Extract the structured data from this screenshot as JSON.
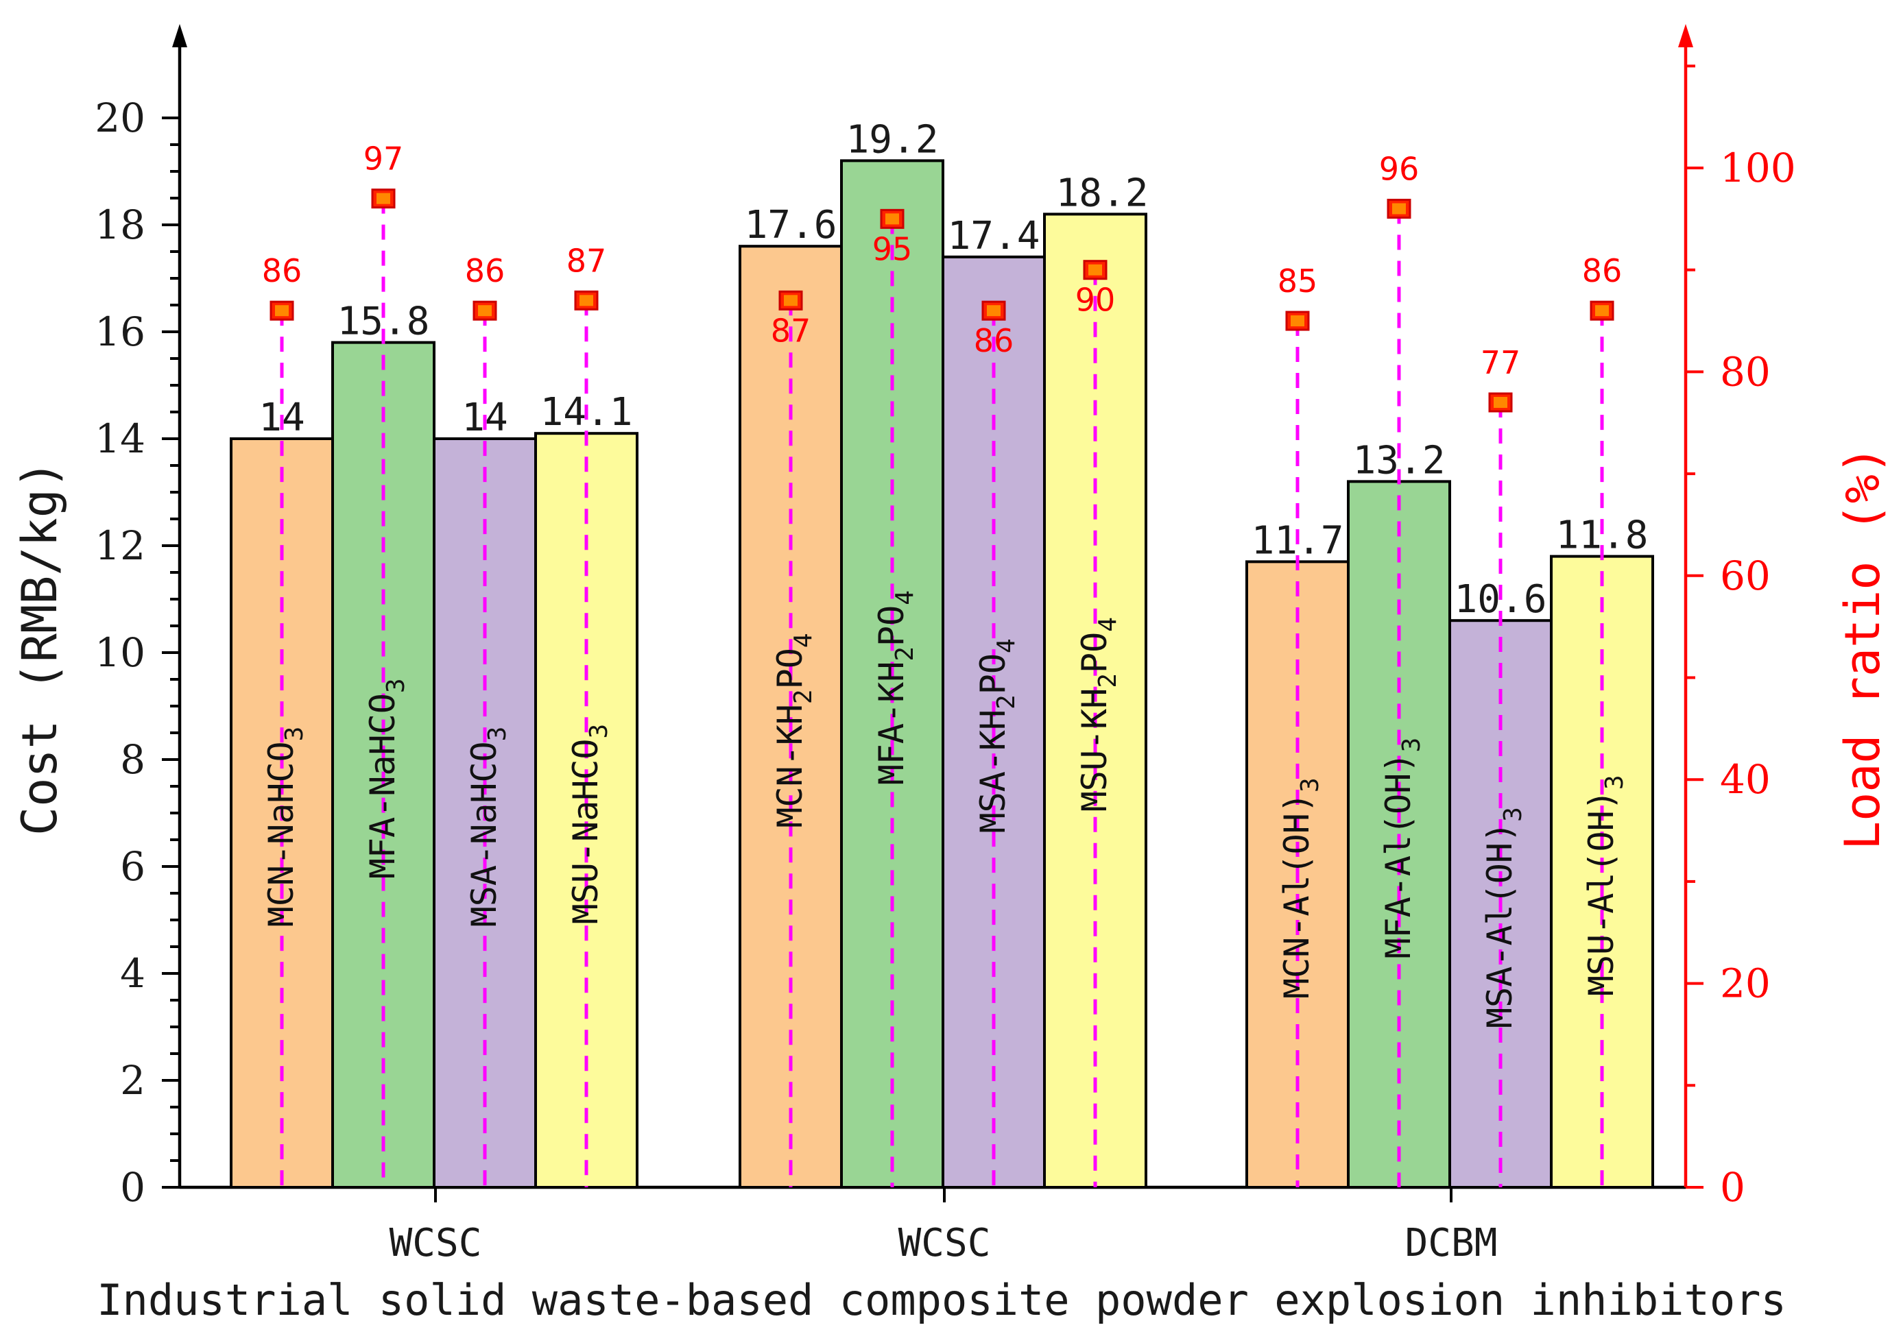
{
  "chart_data": {
    "type": "bar",
    "title": "",
    "xlabel": "Industrial solid waste-based composite powder explosion inhibitors",
    "ylabel": "Cost (RMB/kg)",
    "y2label": "Load ratio (%)",
    "ylim": [
      0,
      21
    ],
    "y2lim": [
      0,
      110
    ],
    "yticks": [
      "0",
      "2",
      "4",
      "6",
      "8",
      "10",
      "12",
      "14",
      "16",
      "18",
      "20"
    ],
    "y2ticks": [
      "0",
      "20",
      "40",
      "60",
      "80",
      "100"
    ],
    "groups": [
      "WCSC",
      "WCSC",
      "DCBM"
    ],
    "bars": [
      {
        "name": "MCN-NaHCO",
        "sub": "3",
        "group": 0,
        "cost": 14,
        "cost_label": "14",
        "load": 86,
        "load_label": "86",
        "color": "#fcc88e"
      },
      {
        "name": "MFA-NaHCO",
        "sub": "3",
        "group": 0,
        "cost": 15.8,
        "cost_label": "15.8",
        "load": 97,
        "load_label": "97",
        "color": "#99d594"
      },
      {
        "name": "MSA-NaHCO",
        "sub": "3",
        "group": 0,
        "cost": 14,
        "cost_label": "14",
        "load": 86,
        "load_label": "86",
        "color": "#c4b2d8"
      },
      {
        "name": "MSU-NaHCO",
        "sub": "3",
        "group": 0,
        "cost": 14.1,
        "cost_label": "14.1",
        "load": 87,
        "load_label": "87",
        "color": "#fdfb9b"
      },
      {
        "name": "MCN-KH",
        "sub": "2",
        "name2": "PO",
        "sub2": "4",
        "group": 1,
        "cost": 17.6,
        "cost_label": "17.6",
        "load": 87,
        "load_label": "87",
        "color": "#fcc88e"
      },
      {
        "name": "MFA-KH",
        "sub": "2",
        "name2": "PO",
        "sub2": "4",
        "group": 1,
        "cost": 19.2,
        "cost_label": "19.2",
        "load": 95,
        "load_label": "95",
        "color": "#99d594"
      },
      {
        "name": "MSA-KH",
        "sub": "2",
        "name2": "PO",
        "sub2": "4",
        "group": 1,
        "cost": 17.4,
        "cost_label": "17.4",
        "load": 86,
        "load_label": "86",
        "color": "#c4b2d8"
      },
      {
        "name": "MSU-KH",
        "sub": "2",
        "name2": "PO",
        "sub2": "4",
        "group": 1,
        "cost": 18.2,
        "cost_label": "18.2",
        "load": 90,
        "load_label": "90",
        "color": "#fdfb9b"
      },
      {
        "name": "MCN-Al(OH)",
        "sub": "3",
        "group": 2,
        "cost": 11.7,
        "cost_label": "11.7",
        "load": 85,
        "load_label": "85",
        "color": "#fcc88e"
      },
      {
        "name": "MFA-Al(OH)",
        "sub": "3",
        "group": 2,
        "cost": 13.2,
        "cost_label": "13.2",
        "load": 96,
        "load_label": "96",
        "color": "#99d594"
      },
      {
        "name": "MSA-Al(OH)",
        "sub": "3",
        "group": 2,
        "cost": 10.6,
        "cost_label": "10.6",
        "load": 77,
        "load_label": "77",
        "color": "#c4b2d8"
      },
      {
        "name": "MSU-Al(OH)",
        "sub": "3",
        "group": 2,
        "cost": 11.8,
        "cost_label": "11.8",
        "load": 86,
        "load_label": "86",
        "color": "#fdfb9b"
      }
    ],
    "colors": {
      "axis": "#000000",
      "axis_secondary": "#ff0000",
      "drop_line": "#ff00ff",
      "marker": "#ff2200"
    }
  }
}
